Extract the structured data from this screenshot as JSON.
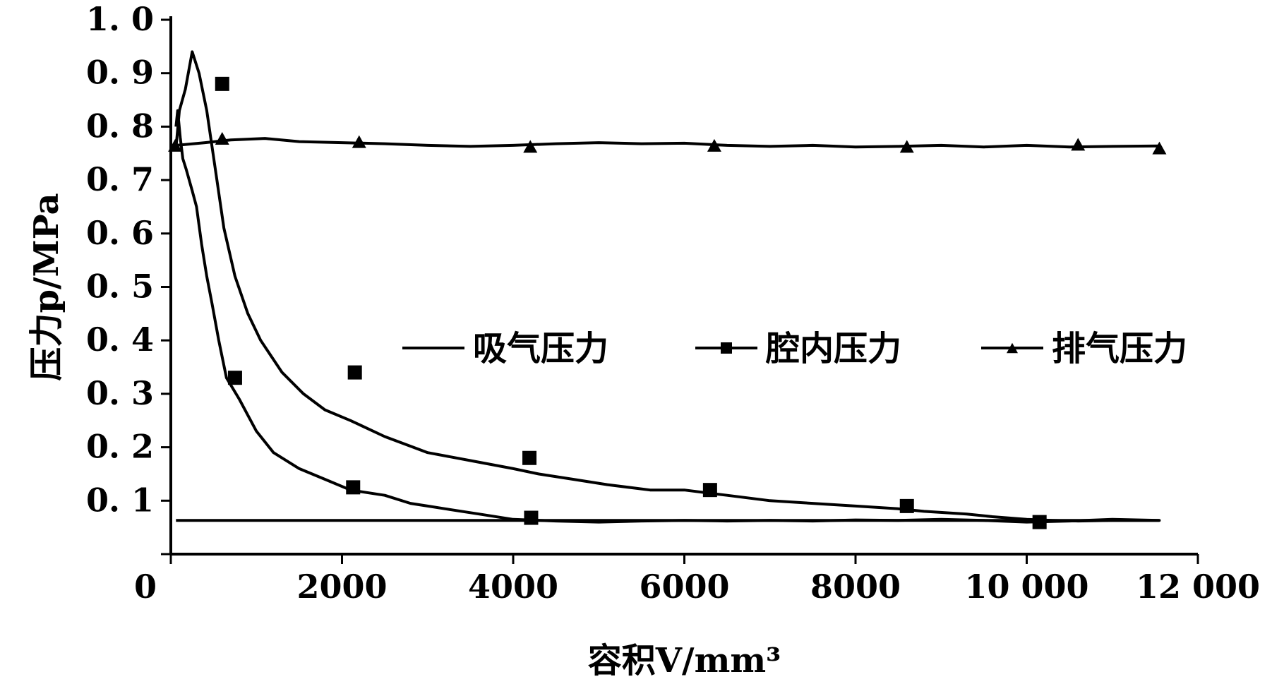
{
  "chart_data": {
    "type": "line",
    "xlabel": "容积V/mm³",
    "ylabel": "压力p/MPa",
    "xlim": [
      0,
      12000
    ],
    "ylim": [
      0,
      1.0
    ],
    "x_ticks": [
      0,
      2000,
      4000,
      6000,
      8000,
      10000,
      12000
    ],
    "x_tick_labels": [
      "0",
      "2000",
      "4000",
      "6000",
      "8000",
      "10 000",
      "12 000"
    ],
    "y_ticks": [
      0.1,
      0.2,
      0.3,
      0.4,
      0.5,
      0.6,
      0.7,
      0.8,
      0.9,
      1.0
    ],
    "y_tick_labels": [
      "0. 1",
      "0. 2",
      "0. 3",
      "0. 4",
      "0. 5",
      "0. 6",
      "0. 7",
      "0. 8",
      "0. 9",
      "1. 0"
    ],
    "grid": false,
    "legend_position": "center-right",
    "series": [
      {
        "name": "吸气压力",
        "marker": "none",
        "color": "#000000",
        "x": [
          60,
          11550
        ],
        "y": [
          0.063,
          0.063
        ]
      },
      {
        "name": "腔内压力",
        "marker": "square",
        "color": "#000000",
        "x": [
          60,
          100,
          170,
          250,
          330,
          420,
          520,
          620,
          750,
          900,
          1050,
          1300,
          1550,
          1800,
          2100,
          2500,
          3000,
          3500,
          4000,
          4300,
          4700,
          5100,
          5600,
          6000,
          6500,
          7000,
          7500,
          8000,
          8500,
          8800,
          9300,
          9600,
          10000,
          10300,
          10600,
          11000,
          11550,
          11000,
          10500,
          10000,
          9500,
          9000,
          8500,
          8000,
          7500,
          7000,
          6500,
          6000,
          5500,
          5000,
          4500,
          4000,
          3600,
          3200,
          3000,
          2800,
          2500,
          2100,
          1800,
          1500,
          1200,
          1000,
          900,
          800,
          650,
          560,
          480,
          420,
          360,
          300,
          250,
          180,
          140,
          110,
          80,
          60
        ],
        "y": [
          0.76,
          0.83,
          0.87,
          0.94,
          0.9,
          0.83,
          0.72,
          0.61,
          0.52,
          0.45,
          0.4,
          0.34,
          0.3,
          0.27,
          0.25,
          0.22,
          0.19,
          0.175,
          0.16,
          0.15,
          0.14,
          0.13,
          0.12,
          0.12,
          0.11,
          0.1,
          0.095,
          0.09,
          0.085,
          0.08,
          0.075,
          0.07,
          0.065,
          0.063,
          0.062,
          0.063,
          0.063,
          0.065,
          0.062,
          0.06,
          0.063,
          0.065,
          0.063,
          0.064,
          0.062,
          0.063,
          0.062,
          0.063,
          0.062,
          0.06,
          0.062,
          0.065,
          0.075,
          0.085,
          0.09,
          0.095,
          0.11,
          0.12,
          0.14,
          0.16,
          0.19,
          0.23,
          0.26,
          0.29,
          0.33,
          0.4,
          0.47,
          0.52,
          0.58,
          0.65,
          0.68,
          0.72,
          0.74,
          0.78,
          0.83,
          0.8
        ]
      },
      {
        "name": "排气压力",
        "marker": "triangle",
        "color": "#000000",
        "x": [
          60,
          400,
          700,
          1100,
          1500,
          2000,
          2500,
          3000,
          3500,
          4000,
          4500,
          5000,
          5500,
          6000,
          6500,
          7000,
          7500,
          8000,
          8500,
          9000,
          9500,
          10000,
          10500,
          11000,
          11550
        ],
        "y": [
          0.765,
          0.77,
          0.775,
          0.778,
          0.772,
          0.77,
          0.768,
          0.765,
          0.763,
          0.765,
          0.768,
          0.77,
          0.768,
          0.769,
          0.765,
          0.763,
          0.765,
          0.762,
          0.763,
          0.765,
          0.762,
          0.765,
          0.762,
          0.763,
          0.764
        ]
      }
    ],
    "markers": {
      "腔内压力": {
        "x": [
          750,
          2130,
          4210,
          6300,
          8600,
          10150,
          600,
          2150,
          4190
        ],
        "y": [
          0.33,
          0.125,
          0.068,
          0.12,
          0.09,
          0.06,
          0.88,
          0.34,
          0.18
        ]
      },
      "排气压力": {
        "x": [
          50,
          600,
          2200,
          4200,
          6350,
          8600,
          10600,
          11550
        ],
        "y": [
          0.765,
          0.778,
          0.772,
          0.763,
          0.765,
          0.763,
          0.767,
          0.76
        ]
      }
    }
  }
}
